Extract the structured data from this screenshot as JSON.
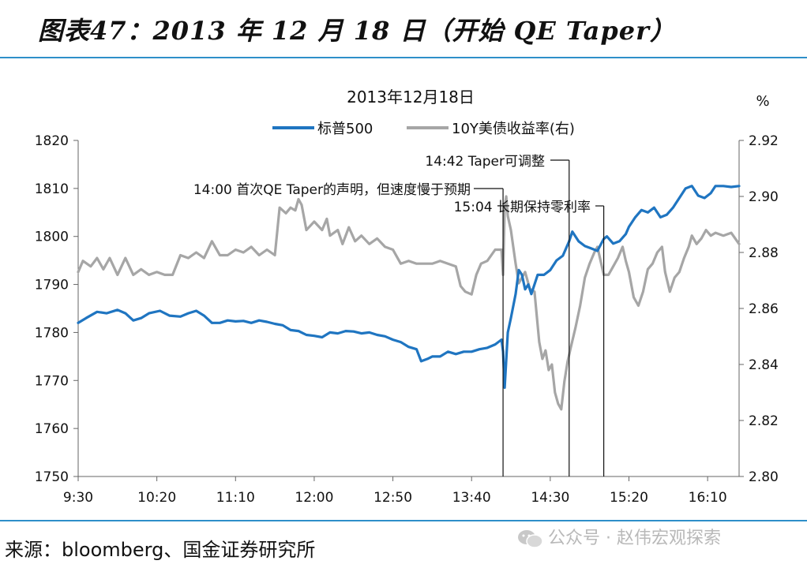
{
  "figure_title": "图表47：2013 年 12 月 18 日（开始 QE Taper）",
  "source": "来源：bloomberg、国金证券研究所",
  "watermark": "公众号 · 赵伟宏观探索",
  "colors": {
    "spx": "#1f75c1",
    "yield": "#a6a6a6",
    "rule": "#2e8fc9"
  },
  "chart_data": {
    "type": "line",
    "title": "2013年12月18日",
    "right_unit": "%",
    "legend_position": "top-center",
    "x_ticks": [
      "9:30",
      "10:20",
      "11:10",
      "12:00",
      "12:50",
      "13:40",
      "14:30",
      "15:20",
      "16:10"
    ],
    "x_range": [
      "9:30",
      "16:30"
    ],
    "y_left": {
      "range": [
        1750,
        1820
      ],
      "ticks": [
        1820,
        1810,
        1800,
        1790,
        1780,
        1770,
        1760,
        1750
      ]
    },
    "y_right": {
      "range": [
        2.8,
        2.92
      ],
      "ticks": [
        "2.92",
        "2.90",
        "2.88",
        "2.86",
        "2.84",
        "2.82",
        "2.80"
      ]
    },
    "annotations": [
      {
        "time": "14:00",
        "text": "14:00 首次QE Taper的声明，但速度慢于预期"
      },
      {
        "time": "14:42",
        "text": "14:42 Taper可调整"
      },
      {
        "time": "15:04",
        "text": "15:04 长期保持零利率"
      }
    ],
    "series": [
      {
        "name": "标普500",
        "axis": "left",
        "points": [
          [
            "9:30",
            1782
          ],
          [
            "9:35",
            1783
          ],
          [
            "9:42",
            1784.3
          ],
          [
            "9:48",
            1784
          ],
          [
            "9:55",
            1784.7
          ],
          [
            "10:00",
            1784
          ],
          [
            "10:05",
            1782.5
          ],
          [
            "10:10",
            1783
          ],
          [
            "10:15",
            1784
          ],
          [
            "10:22",
            1784.5
          ],
          [
            "10:28",
            1783.5
          ],
          [
            "10:35",
            1783.3
          ],
          [
            "10:40",
            1784
          ],
          [
            "10:45",
            1784.5
          ],
          [
            "10:50",
            1783.5
          ],
          [
            "10:55",
            1782
          ],
          [
            "11:00",
            1782
          ],
          [
            "11:05",
            1782.5
          ],
          [
            "11:10",
            1782.3
          ],
          [
            "11:15",
            1782.4
          ],
          [
            "11:20",
            1782
          ],
          [
            "11:25",
            1782.5
          ],
          [
            "11:30",
            1782.2
          ],
          [
            "11:35",
            1781.8
          ],
          [
            "11:40",
            1781.5
          ],
          [
            "11:45",
            1780.5
          ],
          [
            "11:50",
            1780.3
          ],
          [
            "11:55",
            1779.5
          ],
          [
            "12:00",
            1779.3
          ],
          [
            "12:05",
            1779
          ],
          [
            "12:10",
            1780
          ],
          [
            "12:15",
            1779.8
          ],
          [
            "12:20",
            1780.3
          ],
          [
            "12:25",
            1780.2
          ],
          [
            "12:30",
            1779.8
          ],
          [
            "12:35",
            1780
          ],
          [
            "12:40",
            1779.5
          ],
          [
            "12:45",
            1779.2
          ],
          [
            "12:50",
            1778.5
          ],
          [
            "12:55",
            1778
          ],
          [
            "13:00",
            1777
          ],
          [
            "13:05",
            1776.5
          ],
          [
            "13:08",
            1774
          ],
          [
            "13:12",
            1774.5
          ],
          [
            "13:15",
            1775
          ],
          [
            "13:20",
            1775
          ],
          [
            "13:25",
            1776
          ],
          [
            "13:30",
            1775.5
          ],
          [
            "13:35",
            1776
          ],
          [
            "13:40",
            1776
          ],
          [
            "13:45",
            1776.5
          ],
          [
            "13:50",
            1776.8
          ],
          [
            "13:55",
            1777.5
          ],
          [
            "13:59",
            1778.5
          ],
          [
            "14:00",
            1776
          ],
          [
            "14:01",
            1768.5
          ],
          [
            "14:03",
            1780
          ],
          [
            "14:05",
            1783
          ],
          [
            "14:08",
            1788
          ],
          [
            "14:10",
            1793
          ],
          [
            "14:12",
            1792
          ],
          [
            "14:14",
            1789
          ],
          [
            "14:16",
            1790
          ],
          [
            "14:18",
            1788
          ],
          [
            "14:22",
            1792
          ],
          [
            "14:26",
            1792
          ],
          [
            "14:30",
            1793
          ],
          [
            "14:34",
            1795
          ],
          [
            "14:38",
            1796
          ],
          [
            "14:42",
            1799
          ],
          [
            "14:44",
            1801
          ],
          [
            "14:48",
            1799
          ],
          [
            "14:52",
            1798
          ],
          [
            "14:56",
            1797.5
          ],
          [
            "15:00",
            1797
          ],
          [
            "15:04",
            1799.5
          ],
          [
            "15:06",
            1800
          ],
          [
            "15:10",
            1798.5
          ],
          [
            "15:14",
            1799
          ],
          [
            "15:18",
            1800.5
          ],
          [
            "15:20",
            1802
          ],
          [
            "15:24",
            1804
          ],
          [
            "15:28",
            1805.5
          ],
          [
            "15:32",
            1805
          ],
          [
            "15:36",
            1806
          ],
          [
            "15:40",
            1804
          ],
          [
            "15:44",
            1804.5
          ],
          [
            "15:48",
            1806
          ],
          [
            "15:52",
            1808
          ],
          [
            "15:56",
            1810
          ],
          [
            "16:00",
            1810.5
          ],
          [
            "16:04",
            1808.5
          ],
          [
            "16:08",
            1808
          ],
          [
            "16:12",
            1809
          ],
          [
            "16:15",
            1810.5
          ],
          [
            "16:20",
            1810.5
          ],
          [
            "16:25",
            1810.3
          ],
          [
            "16:30",
            1810.5
          ]
        ]
      },
      {
        "name": "10Y美债收益率(右)",
        "axis": "right",
        "points": [
          [
            "9:30",
            2.873
          ],
          [
            "9:33",
            2.877
          ],
          [
            "9:38",
            2.875
          ],
          [
            "9:42",
            2.878
          ],
          [
            "9:46",
            2.874
          ],
          [
            "9:50",
            2.878
          ],
          [
            "9:55",
            2.872
          ],
          [
            "10:00",
            2.878
          ],
          [
            "10:05",
            2.872
          ],
          [
            "10:10",
            2.874
          ],
          [
            "10:15",
            2.872
          ],
          [
            "10:20",
            2.873
          ],
          [
            "10:25",
            2.872
          ],
          [
            "10:30",
            2.872
          ],
          [
            "10:35",
            2.879
          ],
          [
            "10:40",
            2.878
          ],
          [
            "10:45",
            2.88
          ],
          [
            "10:50",
            2.878
          ],
          [
            "10:55",
            2.884
          ],
          [
            "11:00",
            2.879
          ],
          [
            "11:05",
            2.879
          ],
          [
            "11:10",
            2.881
          ],
          [
            "11:15",
            2.88
          ],
          [
            "11:20",
            2.882
          ],
          [
            "11:25",
            2.879
          ],
          [
            "11:30",
            2.881
          ],
          [
            "11:35",
            2.879
          ],
          [
            "11:38",
            2.896
          ],
          [
            "11:42",
            2.894
          ],
          [
            "11:45",
            2.896
          ],
          [
            "11:48",
            2.895
          ],
          [
            "11:50",
            2.899
          ],
          [
            "11:52",
            2.897
          ],
          [
            "11:55",
            2.888
          ],
          [
            "12:00",
            2.891
          ],
          [
            "12:05",
            2.888
          ],
          [
            "12:08",
            2.892
          ],
          [
            "12:10",
            2.886
          ],
          [
            "12:15",
            2.888
          ],
          [
            "12:18",
            2.883
          ],
          [
            "12:22",
            2.889
          ],
          [
            "12:26",
            2.884
          ],
          [
            "12:30",
            2.886
          ],
          [
            "12:35",
            2.883
          ],
          [
            "12:40",
            2.885
          ],
          [
            "12:45",
            2.882
          ],
          [
            "12:50",
            2.881
          ],
          [
            "12:55",
            2.876
          ],
          [
            "13:00",
            2.877
          ],
          [
            "13:05",
            2.876
          ],
          [
            "13:10",
            2.876
          ],
          [
            "13:15",
            2.876
          ],
          [
            "13:20",
            2.877
          ],
          [
            "13:25",
            2.876
          ],
          [
            "13:30",
            2.875
          ],
          [
            "13:33",
            2.868
          ],
          [
            "13:36",
            2.866
          ],
          [
            "13:40",
            2.865
          ],
          [
            "13:43",
            2.872
          ],
          [
            "13:46",
            2.876
          ],
          [
            "13:50",
            2.877
          ],
          [
            "13:55",
            2.881
          ],
          [
            "13:59",
            2.881
          ],
          [
            "14:00",
            2.872
          ],
          [
            "14:01",
            2.896
          ],
          [
            "14:02",
            2.9
          ],
          [
            "14:03",
            2.893
          ],
          [
            "14:05",
            2.888
          ],
          [
            "14:08",
            2.876
          ],
          [
            "14:10",
            2.869
          ],
          [
            "14:12",
            2.871
          ],
          [
            "14:14",
            2.873
          ],
          [
            "14:17",
            2.867
          ],
          [
            "14:20",
            2.866
          ],
          [
            "14:23",
            2.848
          ],
          [
            "14:25",
            2.842
          ],
          [
            "14:27",
            2.845
          ],
          [
            "14:29",
            2.838
          ],
          [
            "14:31",
            2.84
          ],
          [
            "14:33",
            2.83
          ],
          [
            "14:35",
            2.826
          ],
          [
            "14:37",
            2.824
          ],
          [
            "14:39",
            2.834
          ],
          [
            "14:41",
            2.841
          ],
          [
            "14:43",
            2.846
          ],
          [
            "14:46",
            2.853
          ],
          [
            "14:49",
            2.861
          ],
          [
            "14:52",
            2.871
          ],
          [
            "14:55",
            2.876
          ],
          [
            "14:58",
            2.88
          ],
          [
            "15:00",
            2.882
          ],
          [
            "15:04",
            2.872
          ],
          [
            "15:07",
            2.872
          ],
          [
            "15:10",
            2.875
          ],
          [
            "15:13",
            2.878
          ],
          [
            "15:16",
            2.882
          ],
          [
            "15:18",
            2.877
          ],
          [
            "15:20",
            2.873
          ],
          [
            "15:23",
            2.864
          ],
          [
            "15:26",
            2.861
          ],
          [
            "15:29",
            2.866
          ],
          [
            "15:32",
            2.874
          ],
          [
            "15:35",
            2.876
          ],
          [
            "15:38",
            2.88
          ],
          [
            "15:41",
            2.882
          ],
          [
            "15:43",
            2.873
          ],
          [
            "15:46",
            2.866
          ],
          [
            "15:49",
            2.871
          ],
          [
            "15:52",
            2.873
          ],
          [
            "15:55",
            2.878
          ],
          [
            "15:58",
            2.882
          ],
          [
            "16:00",
            2.886
          ],
          [
            "16:03",
            2.883
          ],
          [
            "16:06",
            2.885
          ],
          [
            "16:09",
            2.888
          ],
          [
            "16:12",
            2.886
          ],
          [
            "16:15",
            2.887
          ],
          [
            "16:20",
            2.886
          ],
          [
            "16:25",
            2.887
          ],
          [
            "16:30",
            2.883
          ]
        ]
      }
    ]
  }
}
